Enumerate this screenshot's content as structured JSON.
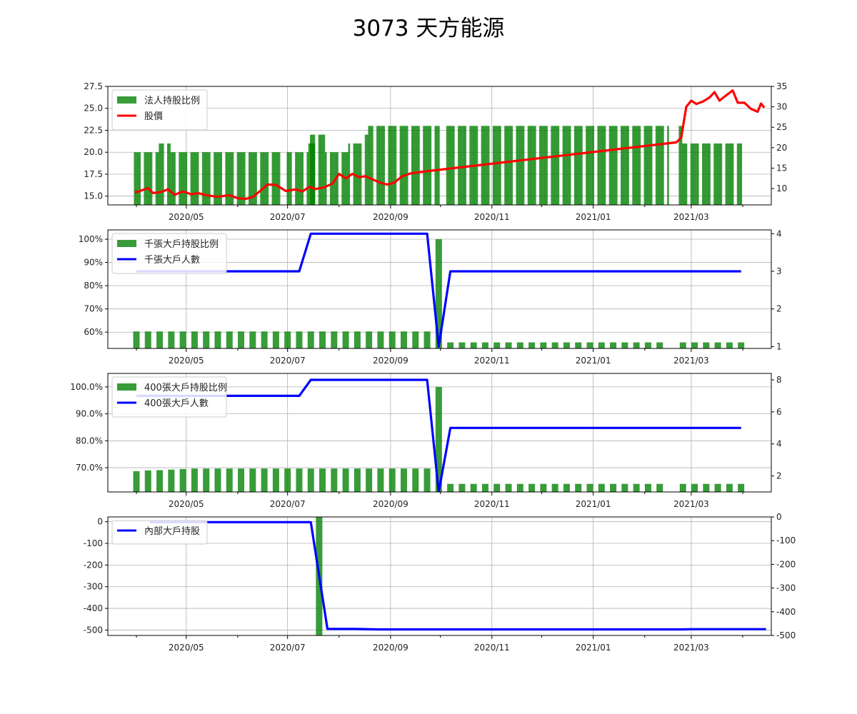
{
  "title": "3073 天方能源",
  "x_tick_labels": [
    "2020/05",
    "2020/07",
    "2020/09",
    "2020/11",
    "2021/01",
    "2021/03"
  ],
  "chart_data": [
    {
      "type": "bar+line",
      "panel": 1,
      "legend": [
        "法人持股比例",
        "股價"
      ],
      "legend_position": "top-left",
      "grid": true,
      "y_left_ticks": [
        "15.0",
        "17.5",
        "20.0",
        "22.5",
        "25.0",
        "27.5"
      ],
      "y_left_lim": [
        14,
        27.5
      ],
      "y_right_ticks": [
        "10",
        "15",
        "20",
        "25",
        "30",
        "35"
      ],
      "y_right_lim": [
        6,
        35
      ],
      "bar_color": "#008000",
      "line_color": "#ff0000",
      "bar_segments": [
        {
          "from": "2020-03-31",
          "to": "2020-04-03",
          "value": 20.0
        },
        {
          "from": "2020-04-06",
          "to": "2020-04-14",
          "value": 20.0
        },
        {
          "from": "2020-04-15",
          "to": "2020-04-21",
          "value": 21.0
        },
        {
          "from": "2020-04-22",
          "to": "2020-05-26",
          "value": 20.0
        },
        {
          "from": "2020-05-27",
          "to": "2020-06-26",
          "value": 20.0
        },
        {
          "from": "2020-07-01",
          "to": "2020-07-13",
          "value": 20.0
        },
        {
          "from": "2020-07-14",
          "to": "2020-07-17",
          "value": 21.0
        },
        {
          "from": "2020-07-15",
          "to": "2020-07-17",
          "value": 22.0
        },
        {
          "from": "2020-07-20",
          "to": "2020-07-23",
          "value": 22.0
        },
        {
          "from": "2020-07-24",
          "to": "2020-08-06",
          "value": 20.0
        },
        {
          "from": "2020-08-07",
          "to": "2020-08-14",
          "value": 21.0
        },
        {
          "from": "2020-08-15",
          "to": "2020-08-18",
          "value": 22.0
        },
        {
          "from": "2020-08-19",
          "to": "2020-09-30",
          "value": 23.0
        },
        {
          "from": "2020-10-05",
          "to": "2021-02-15",
          "value": 23.0
        },
        {
          "from": "2021-02-20",
          "to": "2021-02-23",
          "value": 23.0
        },
        {
          "from": "2021-02-24",
          "to": "2021-03-31",
          "value": 21.0
        }
      ],
      "price_line": [
        [
          "2020-03-31",
          9.0
        ],
        [
          "2020-04-03",
          9.4
        ],
        [
          "2020-04-08",
          10.1
        ],
        [
          "2020-04-11",
          8.9
        ],
        [
          "2020-04-16",
          9.2
        ],
        [
          "2020-04-20",
          9.8
        ],
        [
          "2020-04-24",
          8.5
        ],
        [
          "2020-04-29",
          9.3
        ],
        [
          "2020-05-04",
          8.6
        ],
        [
          "2020-05-08",
          8.9
        ],
        [
          "2020-05-14",
          8.3
        ],
        [
          "2020-05-20",
          8.0
        ],
        [
          "2020-05-27",
          8.4
        ],
        [
          "2020-06-01",
          7.6
        ],
        [
          "2020-06-06",
          7.5
        ],
        [
          "2020-06-10",
          7.9
        ],
        [
          "2020-06-15",
          9.6
        ],
        [
          "2020-06-19",
          11.0
        ],
        [
          "2020-06-24",
          10.9
        ],
        [
          "2020-06-30",
          9.4
        ],
        [
          "2020-07-06",
          9.8
        ],
        [
          "2020-07-10",
          9.3
        ],
        [
          "2020-07-14",
          10.4
        ],
        [
          "2020-07-18",
          9.9
        ],
        [
          "2020-07-23",
          10.3
        ],
        [
          "2020-07-28",
          11.2
        ],
        [
          "2020-08-01",
          13.6
        ],
        [
          "2020-08-05",
          12.5
        ],
        [
          "2020-08-09",
          13.6
        ],
        [
          "2020-08-13",
          12.8
        ],
        [
          "2020-08-17",
          13.0
        ],
        [
          "2020-08-22",
          12.1
        ],
        [
          "2020-08-26",
          11.4
        ],
        [
          "2020-08-30",
          11.0
        ],
        [
          "2020-09-03",
          11.4
        ],
        [
          "2020-09-08",
          13.0
        ],
        [
          "2020-09-13",
          13.7
        ],
        [
          "2020-09-20",
          14.1
        ],
        [
          "2021-02-20",
          21.3
        ],
        [
          "2021-02-23",
          22.5
        ],
        [
          "2021-02-26",
          30.0
        ],
        [
          "2021-03-01",
          31.5
        ],
        [
          "2021-03-04",
          30.7
        ],
        [
          "2021-03-08",
          31.3
        ],
        [
          "2021-03-12",
          32.3
        ],
        [
          "2021-03-15",
          33.6
        ],
        [
          "2021-03-18",
          31.5
        ],
        [
          "2021-03-22",
          32.8
        ],
        [
          "2021-03-26",
          34.0
        ],
        [
          "2021-03-29",
          31.0
        ],
        [
          "2021-04-02",
          31.0
        ],
        [
          "2021-04-06",
          29.5
        ],
        [
          "2021-04-10",
          28.8
        ],
        [
          "2021-04-12",
          30.8
        ],
        [
          "2021-04-14",
          29.8
        ]
      ]
    },
    {
      "type": "bar+line",
      "panel": 2,
      "legend": [
        "千張大戶持股比例",
        "千張大戶人數"
      ],
      "legend_position": "top-left",
      "grid": true,
      "y_left_ticks": [
        "60%",
        "70%",
        "80%",
        "90%",
        "100%"
      ],
      "y_left_lim": [
        53,
        104
      ],
      "y_right_ticks": [
        "1",
        "2",
        "3",
        "4"
      ],
      "y_right_lim": [
        0.95,
        4.1
      ],
      "bar_color": "#008000",
      "line_color": "#0000ff",
      "bar_dates": [
        "2020-04-01",
        "2020-04-08",
        "2020-04-15",
        "2020-04-22",
        "2020-04-29",
        "2020-05-06",
        "2020-05-13",
        "2020-05-20",
        "2020-05-27",
        "2020-06-03",
        "2020-06-10",
        "2020-06-17",
        "2020-06-24",
        "2020-07-01",
        "2020-07-08",
        "2020-07-15",
        "2020-07-22",
        "2020-07-29",
        "2020-08-05",
        "2020-08-12",
        "2020-08-19",
        "2020-08-26",
        "2020-09-02",
        "2020-09-09",
        "2020-09-16",
        "2020-09-23",
        "2020-09-30",
        "2020-10-07",
        "2020-10-14",
        "2020-10-21",
        "2020-10-28",
        "2020-11-04",
        "2020-11-11",
        "2020-11-18",
        "2020-11-25",
        "2020-12-02",
        "2020-12-09",
        "2020-12-16",
        "2020-12-23",
        "2020-12-30",
        "2021-01-06",
        "2021-01-13",
        "2021-01-20",
        "2021-01-27",
        "2021-02-03",
        "2021-02-10",
        "2021-02-24",
        "2021-03-03",
        "2021-03-10",
        "2021-03-17",
        "2021-03-24",
        "2021-03-31"
      ],
      "bar_values": [
        60.3,
        60.3,
        60.3,
        60.3,
        60.3,
        60.3,
        60.3,
        60.3,
        60.3,
        60.3,
        60.3,
        60.3,
        60.3,
        60.3,
        60.3,
        60.3,
        60.3,
        60.3,
        60.3,
        60.3,
        60.3,
        60.3,
        60.3,
        60.3,
        60.3,
        60.3,
        100.0,
        55.6,
        55.6,
        55.6,
        55.6,
        55.6,
        55.6,
        55.6,
        55.6,
        55.6,
        55.6,
        55.6,
        55.6,
        55.6,
        55.6,
        55.6,
        55.6,
        55.6,
        55.6,
        55.6,
        55.6,
        55.6,
        55.6,
        55.6,
        55.6,
        55.6
      ],
      "count_line": [
        [
          "2020-04-01",
          3
        ],
        [
          "2020-07-08",
          3
        ],
        [
          "2020-07-15",
          4
        ],
        [
          "2020-09-23",
          4
        ],
        [
          "2020-09-30",
          1
        ],
        [
          "2020-10-07",
          3
        ],
        [
          "2021-03-31",
          3
        ]
      ]
    },
    {
      "type": "bar+line",
      "panel": 3,
      "legend": [
        "400張大戶持股比例",
        "400張大戶人數"
      ],
      "legend_position": "top-left",
      "grid": true,
      "y_left_ticks": [
        "70.0%",
        "80.0%",
        "90.0%",
        "100.0%"
      ],
      "y_left_lim": [
        61,
        105
      ],
      "y_right_ticks": [
        "2",
        "4",
        "6",
        "8"
      ],
      "y_right_lim": [
        1,
        8.4
      ],
      "bar_color": "#008000",
      "line_color": "#0000ff",
      "bar_values": [
        68.7,
        69.0,
        69.1,
        69.3,
        69.5,
        69.7,
        69.7,
        69.7,
        69.7,
        69.7,
        69.7,
        69.7,
        69.7,
        69.7,
        69.7,
        69.7,
        69.7,
        69.7,
        69.7,
        69.7,
        69.7,
        69.7,
        69.7,
        69.7,
        69.7,
        69.7,
        100.0,
        64.0,
        64.0,
        64.0,
        64.0,
        64.0,
        64.0,
        64.0,
        64.0,
        64.0,
        64.0,
        64.0,
        64.0,
        64.0,
        64.0,
        64.0,
        64.0,
        64.0,
        64.0,
        64.0,
        64.0,
        64.0,
        64.0,
        64.0,
        64.0,
        64.0
      ],
      "count_line": [
        [
          "2020-04-01",
          7
        ],
        [
          "2020-07-08",
          7
        ],
        [
          "2020-07-15",
          8
        ],
        [
          "2020-09-23",
          8
        ],
        [
          "2020-09-30",
          1
        ],
        [
          "2020-10-07",
          5
        ],
        [
          "2021-03-31",
          5
        ]
      ]
    },
    {
      "type": "bar+line",
      "panel": 4,
      "legend": [
        "內部大戶持股"
      ],
      "legend_position": "top-left",
      "grid": true,
      "y_left_ticks": [
        "0",
        "-100",
        "-200",
        "-300",
        "-400",
        "-500"
      ],
      "y_left_lim": [
        -525,
        22
      ],
      "y_right_ticks": [
        "0",
        "-100",
        "-200",
        "-300",
        "-400",
        "-500"
      ],
      "y_right_lim": [
        -500,
        0
      ],
      "bar_color": "#008000",
      "line_color": "#0000ff",
      "bar": {
        "date": "2020-07-20",
        "value": -525
      },
      "holding_line": [
        [
          "2020-04-09",
          -2
        ],
        [
          "2020-07-15",
          -2
        ],
        [
          "2020-07-25",
          -495
        ],
        [
          "2020-08-10",
          -495
        ],
        [
          "2020-08-25",
          -497
        ],
        [
          "2021-02-24",
          -497
        ],
        [
          "2021-03-01",
          -496
        ],
        [
          "2021-04-15",
          -496
        ]
      ]
    }
  ]
}
